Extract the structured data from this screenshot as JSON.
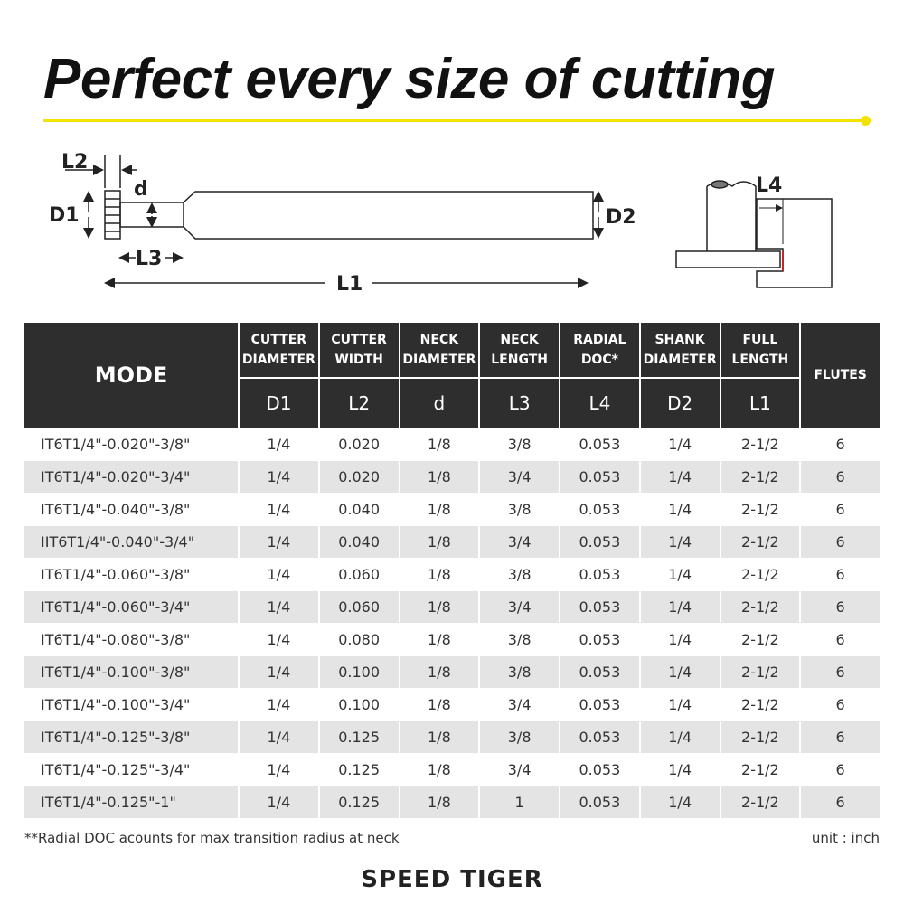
{
  "title": "Perfect every size of cutting",
  "accent_color": "#f2e200",
  "diagram": {
    "labels": {
      "L2": "L2",
      "d": "d",
      "D1": "D1",
      "D2": "D2",
      "L3": "L3",
      "L1": "L1",
      "L4": "L4"
    }
  },
  "table": {
    "mode_header": "MODE",
    "flutes_header": "FLUTES",
    "columns": [
      {
        "name": "CUTTER DIAMETER",
        "symbol": "D1"
      },
      {
        "name": "CUTTER WIDTH",
        "symbol": "L2"
      },
      {
        "name": "NECK DIAMETER",
        "symbol": "d"
      },
      {
        "name": "NECK LENGTH",
        "symbol": "L3"
      },
      {
        "name": "RADIAL DOC*",
        "symbol": "L4"
      },
      {
        "name": "SHANK DIAMETER",
        "symbol": "D2"
      },
      {
        "name": "FULL LENGTH",
        "symbol": "L1"
      }
    ],
    "rows": [
      [
        "IT6T1/4\"-0.020\"-3/8\"",
        "1/4",
        "0.020",
        "1/8",
        "3/8",
        "0.053",
        "1/4",
        "2-1/2",
        "6"
      ],
      [
        "IT6T1/4\"-0.020\"-3/4\"",
        "1/4",
        "0.020",
        "1/8",
        "3/4",
        "0.053",
        "1/4",
        "2-1/2",
        "6"
      ],
      [
        "IT6T1/4\"-0.040\"-3/8\"",
        "1/4",
        "0.040",
        "1/8",
        "3/8",
        "0.053",
        "1/4",
        "2-1/2",
        "6"
      ],
      [
        "IIT6T1/4\"-0.040\"-3/4\"",
        "1/4",
        "0.040",
        "1/8",
        "3/4",
        "0.053",
        "1/4",
        "2-1/2",
        "6"
      ],
      [
        "IT6T1/4\"-0.060\"-3/8\"",
        "1/4",
        "0.060",
        "1/8",
        "3/8",
        "0.053",
        "1/4",
        "2-1/2",
        "6"
      ],
      [
        "IT6T1/4\"-0.060\"-3/4\"",
        "1/4",
        "0.060",
        "1/8",
        "3/4",
        "0.053",
        "1/4",
        "2-1/2",
        "6"
      ],
      [
        "IT6T1/4\"-0.080\"-3/8\"",
        "1/4",
        "0.080",
        "1/8",
        "3/8",
        "0.053",
        "1/4",
        "2-1/2",
        "6"
      ],
      [
        "IT6T1/4\"-0.100\"-3/8\"",
        "1/4",
        "0.100",
        "1/8",
        "3/8",
        "0.053",
        "1/4",
        "2-1/2",
        "6"
      ],
      [
        "IT6T1/4\"-0.100\"-3/4\"",
        "1/4",
        "0.100",
        "1/8",
        "3/4",
        "0.053",
        "1/4",
        "2-1/2",
        "6"
      ],
      [
        "IT6T1/4\"-0.125\"-3/8\"",
        "1/4",
        "0.125",
        "1/8",
        "3/8",
        "0.053",
        "1/4",
        "2-1/2",
        "6"
      ],
      [
        "IT6T1/4\"-0.125\"-3/4\"",
        "1/4",
        "0.125",
        "1/8",
        "3/4",
        "0.053",
        "1/4",
        "2-1/2",
        "6"
      ],
      [
        "IT6T1/4\"-0.125\"-1\"",
        "1/4",
        "0.125",
        "1/8",
        "1",
        "0.053",
        "1/4",
        "2-1/2",
        "6"
      ]
    ]
  },
  "footnote": "**Radial DOC acounts for max transition radius at neck",
  "unit": "unit : inch",
  "brand": "SPEED TIGER"
}
